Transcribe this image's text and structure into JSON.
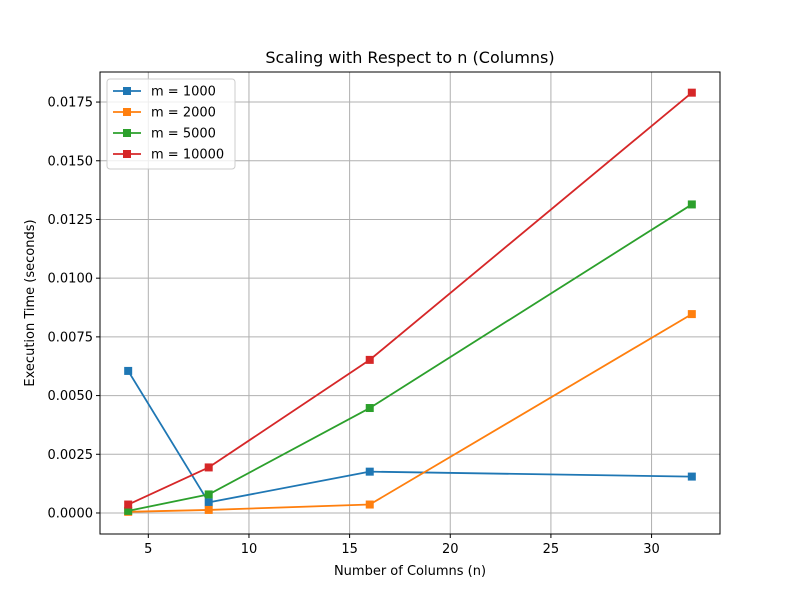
{
  "chart_data": {
    "type": "line",
    "title": "Scaling with Respect to n (Columns)",
    "xlabel": "Number of Columns (n)",
    "ylabel": "Execution Time (seconds)",
    "xlim": [
      2.6,
      33.4
    ],
    "ylim": [
      -0.000895,
      0.01878
    ],
    "xticks": [
      5,
      10,
      15,
      20,
      25,
      30
    ],
    "yticks": [
      0.0,
      0.0025,
      0.005,
      0.0075,
      0.01,
      0.0125,
      0.015,
      0.0175
    ],
    "ytick_labels": [
      "0.0000",
      "0.0025",
      "0.0050",
      "0.0075",
      "0.0100",
      "0.0125",
      "0.0150",
      "0.0175"
    ],
    "grid": true,
    "legend_position": "top-left",
    "x": [
      4,
      8,
      16,
      32
    ],
    "series": [
      {
        "name": "m = 1000",
        "color": "#1f77b4",
        "values": [
          0.00605,
          0.00045,
          0.00176,
          0.00155
        ]
      },
      {
        "name": "m = 2000",
        "color": "#ff7f0e",
        "values": [
          5e-05,
          0.00013,
          0.00036,
          0.00847
        ]
      },
      {
        "name": "m = 5000",
        "color": "#2ca02c",
        "values": [
          9e-05,
          0.00079,
          0.00447,
          0.01314
        ]
      },
      {
        "name": "m = 10000",
        "color": "#d62728",
        "values": [
          0.00036,
          0.00194,
          0.00652,
          0.0179
        ]
      }
    ]
  }
}
